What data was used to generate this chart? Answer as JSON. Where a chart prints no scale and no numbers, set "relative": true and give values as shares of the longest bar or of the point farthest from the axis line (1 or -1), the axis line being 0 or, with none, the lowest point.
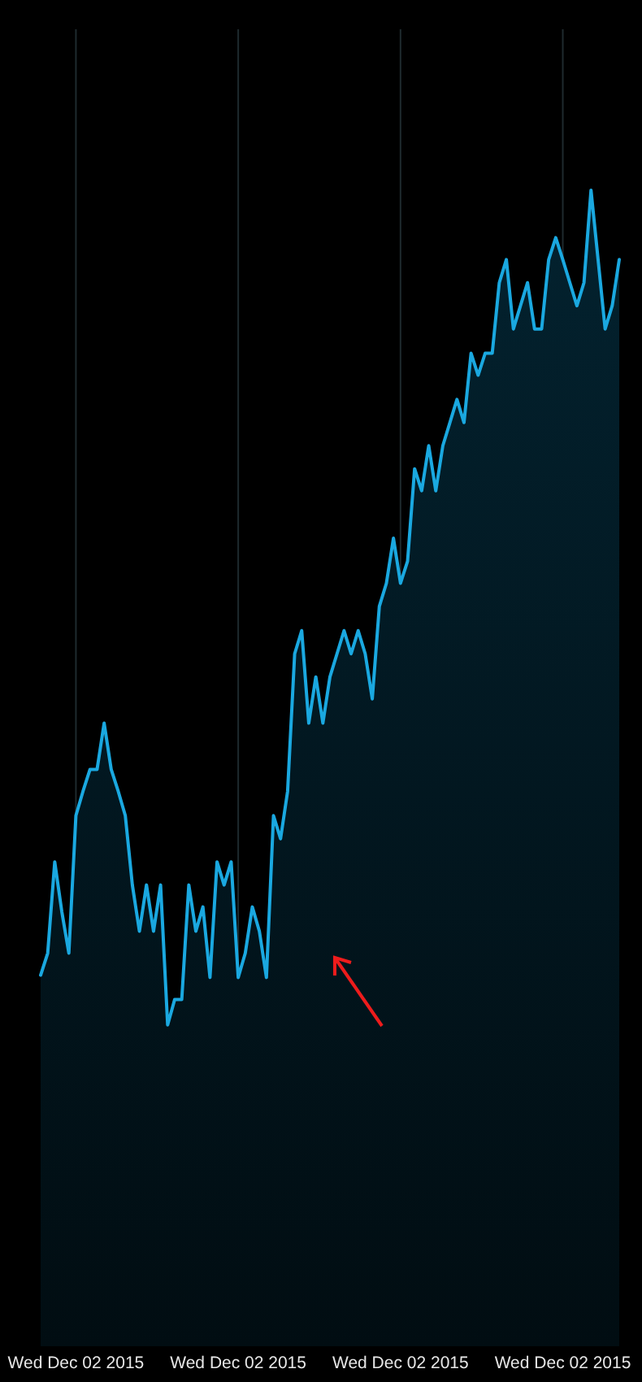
{
  "chart_data": {
    "type": "area",
    "relative": true,
    "grid": "x",
    "categories": [
      null,
      null,
      null,
      null,
      null,
      "Wed Dec 02 2015",
      null,
      null,
      null,
      null,
      null,
      null,
      null,
      null,
      null,
      null,
      null,
      null,
      null,
      null,
      null,
      null,
      null,
      null,
      null,
      null,
      null,
      null,
      "Wed Dec 02 2015",
      null,
      null,
      null,
      null,
      null,
      null,
      null,
      null,
      null,
      null,
      null,
      null,
      null,
      null,
      null,
      null,
      null,
      null,
      null,
      null,
      null,
      null,
      "Wed Dec 02 2015",
      null,
      null,
      null,
      null,
      null,
      null,
      null,
      null,
      null,
      null,
      null,
      null,
      null,
      null,
      null,
      null,
      null,
      null,
      null,
      null,
      null,
      null,
      "Wed Dec 02 2015",
      null,
      null,
      null,
      null,
      null,
      null,
      null,
      null
    ],
    "series": [
      {
        "color": "#1aa8e0",
        "values": [
          0.321,
          0.34,
          0.419,
          0.376,
          0.34,
          0.459,
          0.48,
          0.499,
          0.499,
          0.539,
          0.499,
          0.48,
          0.459,
          0.399,
          0.359,
          0.399,
          0.359,
          0.399,
          0.278,
          0.3,
          0.3,
          0.399,
          0.359,
          0.38,
          0.319,
          0.419,
          0.399,
          0.419,
          0.319,
          0.34,
          0.38,
          0.359,
          0.319,
          0.459,
          0.439,
          0.48,
          0.599,
          0.619,
          0.539,
          0.579,
          0.539,
          0.579,
          0.599,
          0.619,
          0.599,
          0.619,
          0.599,
          0.56,
          0.64,
          0.66,
          0.699,
          0.66,
          0.679,
          0.759,
          0.74,
          0.779,
          0.74,
          0.779,
          0.799,
          0.819,
          0.799,
          0.859,
          0.84,
          0.859,
          0.859,
          0.92,
          0.94,
          0.88,
          0.9,
          0.92,
          0.88,
          0.88,
          0.94,
          0.959,
          0.94,
          0.92,
          0.9,
          0.92,
          1,
          0.94,
          0.88,
          0.9,
          0.94
        ]
      }
    ]
  }
}
